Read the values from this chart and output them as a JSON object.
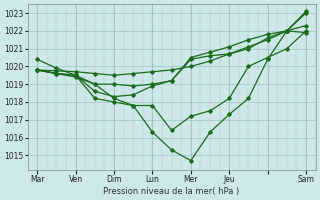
{
  "ylabel": "Pression niveau de la mer( hPa )",
  "bg_color": "#cce8e8",
  "line_color": "#1a6b1a",
  "ylim": [
    1014.2,
    1023.5
  ],
  "yticks": [
    1015,
    1016,
    1017,
    1018,
    1019,
    1020,
    1021,
    1022,
    1023
  ],
  "xtick_labels": [
    "Mar",
    "Ven",
    "Dim",
    "Lun",
    "Mer",
    "Jeu",
    "",
    "Sam"
  ],
  "xtick_positions": [
    0,
    2,
    4,
    6,
    8,
    10,
    12,
    14
  ],
  "xlim": [
    -0.5,
    14.5
  ],
  "line1_x": [
    0,
    1,
    2,
    3,
    4,
    5,
    6,
    7,
    8,
    9,
    10,
    11,
    12,
    13,
    14
  ],
  "line1_y": [
    1019.8,
    1019.75,
    1019.7,
    1019.6,
    1019.5,
    1019.6,
    1019.7,
    1019.8,
    1020.0,
    1020.3,
    1020.7,
    1021.1,
    1021.5,
    1022.0,
    1022.3
  ],
  "line2_x": [
    0,
    1,
    2,
    3,
    4,
    5,
    6,
    7,
    8,
    9,
    10,
    11,
    12,
    13,
    14
  ],
  "line2_y": [
    1020.4,
    1019.9,
    1019.5,
    1019.0,
    1019.0,
    1018.9,
    1019.0,
    1019.2,
    1020.5,
    1020.8,
    1021.1,
    1021.5,
    1021.8,
    1022.0,
    1023.1
  ],
  "line3_x": [
    0,
    1,
    2,
    3,
    4,
    5,
    6,
    7,
    8,
    9,
    10,
    11,
    12,
    13,
    14
  ],
  "line3_y": [
    1019.8,
    1019.6,
    1019.5,
    1018.6,
    1018.3,
    1018.4,
    1018.9,
    1019.2,
    1020.4,
    1020.6,
    1020.7,
    1021.0,
    1021.6,
    1022.0,
    1023.0
  ],
  "line4_x": [
    0,
    1,
    2,
    3,
    4,
    5,
    6,
    7,
    8,
    9,
    10,
    11,
    12,
    13,
    14
  ],
  "line4_y": [
    1019.8,
    1019.6,
    1019.5,
    1018.2,
    1018.0,
    1017.8,
    1017.8,
    1016.4,
    1017.2,
    1017.5,
    1018.2,
    1020.0,
    1020.5,
    1021.0,
    1022.0
  ],
  "line5_x": [
    0,
    2,
    3,
    4,
    5,
    6,
    7,
    8,
    9,
    10,
    11,
    12,
    13,
    14
  ],
  "line5_y": [
    1019.8,
    1019.4,
    1019.0,
    1018.2,
    1017.8,
    1016.3,
    1015.3,
    1014.7,
    1016.3,
    1017.3,
    1018.2,
    1020.4,
    1022.0,
    1021.9
  ]
}
